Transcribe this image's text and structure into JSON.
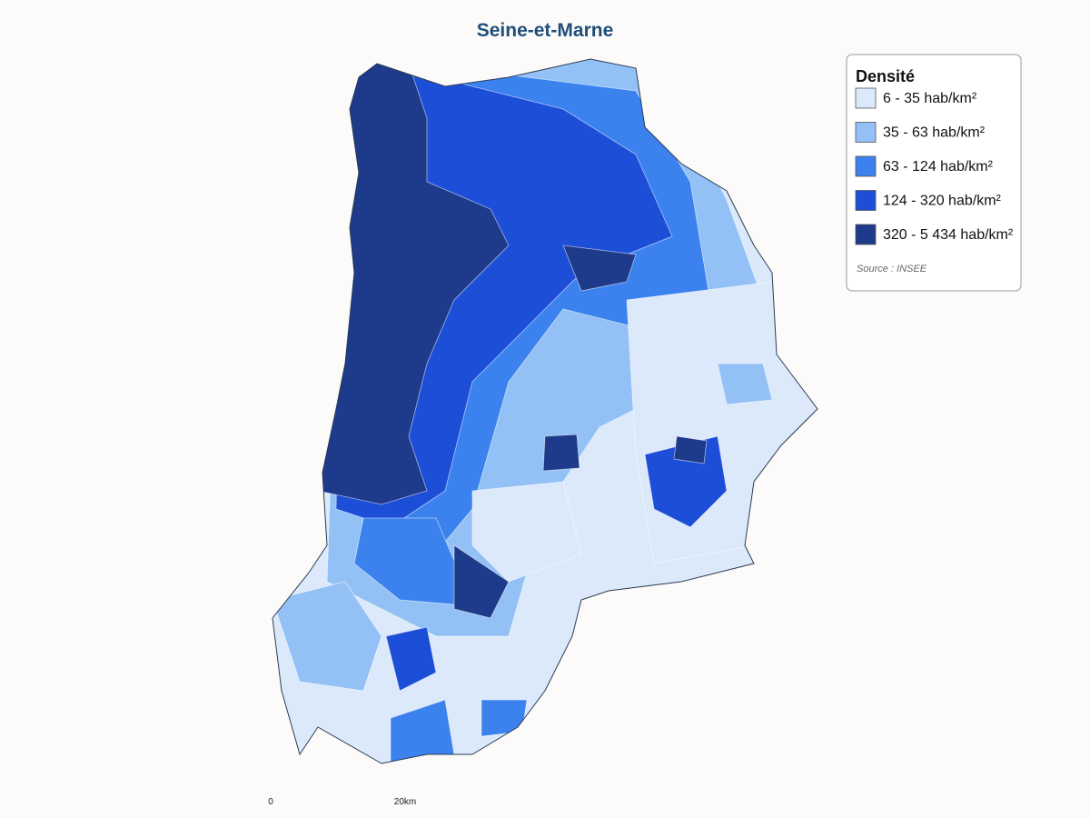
{
  "title": "Seine-et-Marne",
  "legend": {
    "title": "Densité",
    "items": [
      {
        "label": "6 - 35 hab/km²",
        "color": "#dce9fb"
      },
      {
        "label": "35 - 63 hab/km²",
        "color": "#93c1f5"
      },
      {
        "label": "63 - 124 hab/km²",
        "color": "#3b82ee"
      },
      {
        "label": "124 - 320 hab/km²",
        "color": "#1d4ed8"
      },
      {
        "label": "320 - 5 434 hab/km²",
        "color": "#1e3a8a"
      }
    ],
    "source": "Source : INSEE"
  },
  "scale": {
    "start": "0",
    "end": "20km"
  }
}
